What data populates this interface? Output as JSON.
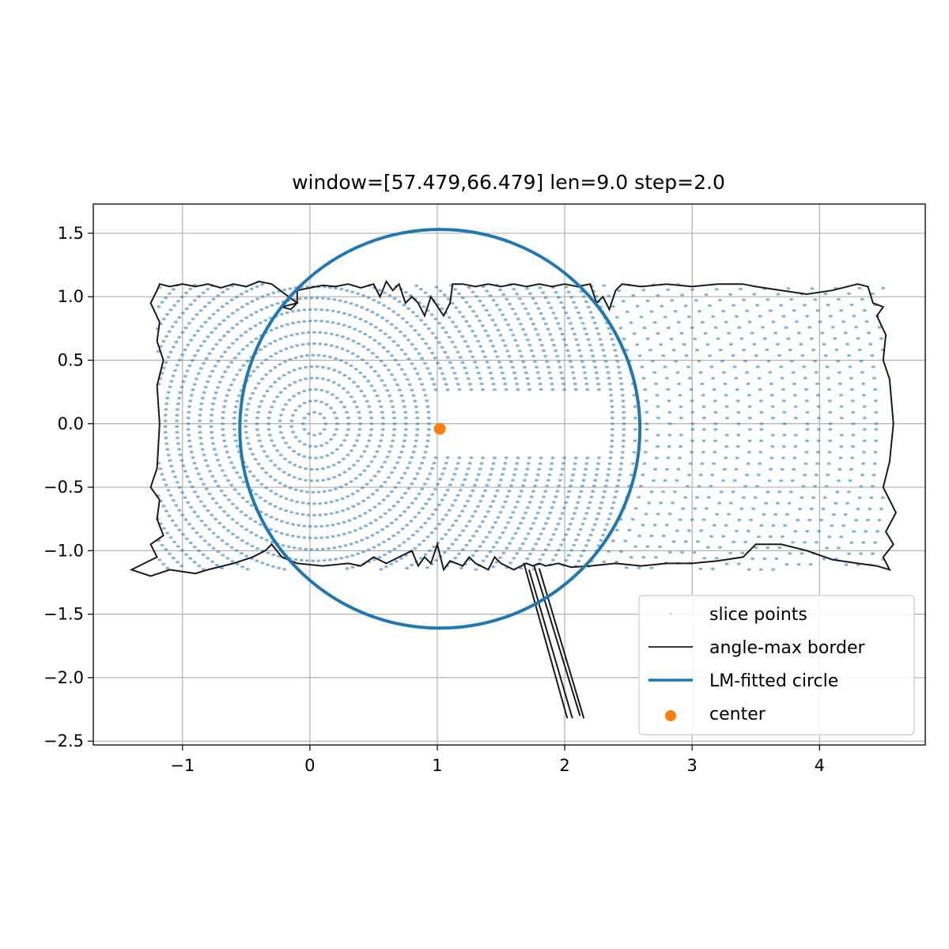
{
  "chart_data": {
    "type": "scatter",
    "title": "window=[57.479,66.479] len=9.0  step=2.0",
    "xlabel": "",
    "ylabel": "",
    "xlim": [
      -1.7,
      4.83
    ],
    "ylim": [
      -2.53,
      1.73
    ],
    "grid": true,
    "x_ticks": [
      -1,
      0,
      1,
      2,
      3,
      4
    ],
    "x_tick_labels": [
      "−1",
      "0",
      "1",
      "2",
      "3",
      "4"
    ],
    "y_ticks": [
      1.5,
      1.0,
      0.5,
      0.0,
      -0.5,
      -1.0,
      -1.5,
      -2.0,
      -2.5
    ],
    "y_tick_labels": [
      "1.5",
      "1.0",
      "0.5",
      "0.0",
      "−0.5",
      "−1.0",
      "−1.5",
      "−2.0",
      "−2.5"
    ],
    "legend_position": "lower-right",
    "colors": {
      "points": "#1f77b4",
      "border": "#1a1a1a",
      "circle": "#1f77b4",
      "center": "#ff7f0e"
    },
    "series": [
      {
        "name": "slice points",
        "kind": "scatter",
        "description_of_generation": "",
        "spiral_origin": [
          0.03,
          0.0
        ],
        "ring_spacing": 0.09,
        "x_range": [
          -1.2,
          4.5
        ],
        "y_range": [
          -1.15,
          1.1
        ]
      },
      {
        "name": "angle-max border",
        "kind": "line",
        "points": [
          [
            -1.2,
            1.05
          ],
          [
            -1.18,
            1.1
          ],
          [
            -1.1,
            1.08
          ],
          [
            -1.0,
            1.1
          ],
          [
            -0.9,
            1.08
          ],
          [
            -0.8,
            1.1
          ],
          [
            -0.7,
            1.07
          ],
          [
            -0.6,
            1.1
          ],
          [
            -0.5,
            1.08
          ],
          [
            -0.4,
            1.12
          ],
          [
            -0.3,
            1.1
          ],
          [
            -0.1,
            0.95
          ],
          [
            -0.22,
            0.92
          ],
          [
            -0.15,
            0.9
          ],
          [
            -0.1,
            0.95
          ],
          [
            -0.1,
            1.05
          ],
          [
            0.0,
            1.07
          ],
          [
            0.1,
            1.09
          ],
          [
            0.2,
            1.08
          ],
          [
            0.3,
            1.1
          ],
          [
            0.4,
            1.07
          ],
          [
            0.5,
            1.1
          ],
          [
            0.55,
            1.0
          ],
          [
            0.6,
            1.12
          ],
          [
            0.65,
            1.05
          ],
          [
            0.7,
            1.1
          ],
          [
            0.75,
            0.95
          ],
          [
            0.8,
            1.0
          ],
          [
            0.85,
            0.95
          ],
          [
            0.9,
            0.85
          ],
          [
            0.95,
            1.0
          ],
          [
            1.05,
            0.85
          ],
          [
            1.1,
            0.95
          ],
          [
            1.12,
            1.1
          ],
          [
            1.2,
            1.1
          ],
          [
            1.3,
            1.08
          ],
          [
            1.4,
            1.1
          ],
          [
            1.5,
            1.08
          ],
          [
            1.6,
            1.1
          ],
          [
            1.7,
            1.08
          ],
          [
            1.8,
            1.1
          ],
          [
            1.9,
            1.08
          ],
          [
            2.0,
            1.1
          ],
          [
            2.1,
            1.08
          ],
          [
            2.2,
            1.1
          ],
          [
            2.25,
            0.95
          ],
          [
            2.3,
            1.0
          ],
          [
            2.35,
            0.9
          ],
          [
            2.4,
            1.05
          ],
          [
            2.45,
            1.1
          ],
          [
            2.6,
            1.08
          ],
          [
            2.8,
            1.1
          ],
          [
            3.0,
            1.08
          ],
          [
            3.2,
            1.1
          ],
          [
            3.4,
            1.1
          ],
          [
            3.5,
            1.08
          ],
          [
            3.7,
            1.05
          ],
          [
            3.9,
            1.02
          ],
          [
            4.1,
            1.05
          ],
          [
            4.3,
            1.1
          ],
          [
            4.38,
            1.08
          ],
          [
            4.42,
            0.95
          ],
          [
            4.5,
            0.92
          ],
          [
            4.45,
            0.85
          ],
          [
            4.52,
            0.7
          ],
          [
            4.5,
            0.5
          ],
          [
            4.55,
            0.35
          ],
          [
            4.58,
            0.0
          ],
          [
            4.55,
            -0.3
          ],
          [
            4.5,
            -0.5
          ],
          [
            4.6,
            -0.7
          ],
          [
            4.52,
            -0.85
          ],
          [
            4.58,
            -0.95
          ],
          [
            4.5,
            -1.05
          ],
          [
            4.55,
            -1.15
          ],
          [
            4.45,
            -1.12
          ],
          [
            4.3,
            -1.1
          ],
          [
            4.1,
            -1.07
          ],
          [
            3.9,
            -1.0
          ],
          [
            3.7,
            -0.95
          ],
          [
            3.5,
            -0.95
          ],
          [
            3.4,
            -1.05
          ],
          [
            3.2,
            -1.08
          ],
          [
            3.0,
            -1.1
          ],
          [
            2.8,
            -1.1
          ],
          [
            2.6,
            -1.12
          ],
          [
            2.4,
            -1.1
          ],
          [
            2.2,
            -1.12
          ],
          [
            2.05,
            -1.13
          ],
          [
            1.95,
            -1.1
          ],
          [
            1.85,
            -1.12
          ],
          [
            1.8,
            -1.1
          ],
          [
            1.75,
            -1.12
          ],
          [
            1.7,
            -1.1
          ],
          [
            1.6,
            -1.15
          ],
          [
            1.5,
            -1.1
          ],
          [
            1.45,
            -1.05
          ],
          [
            1.4,
            -1.15
          ],
          [
            1.3,
            -1.1
          ],
          [
            1.25,
            -1.05
          ],
          [
            1.2,
            -1.12
          ],
          [
            1.1,
            -1.08
          ],
          [
            1.05,
            -1.15
          ],
          [
            1.0,
            -0.95
          ],
          [
            0.95,
            -1.1
          ],
          [
            0.9,
            -1.05
          ],
          [
            0.85,
            -1.12
          ],
          [
            0.8,
            -1.0
          ],
          [
            0.7,
            -1.05
          ],
          [
            0.6,
            -1.1
          ],
          [
            0.5,
            -1.05
          ],
          [
            0.4,
            -1.12
          ],
          [
            0.3,
            -1.1
          ],
          [
            0.1,
            -1.12
          ],
          [
            -0.1,
            -1.1
          ],
          [
            -0.22,
            -1.05
          ],
          [
            -0.3,
            -0.95
          ],
          [
            -0.35,
            -1.0
          ],
          [
            -0.45,
            -1.05
          ],
          [
            -0.6,
            -1.1
          ],
          [
            -0.8,
            -1.15
          ],
          [
            -0.9,
            -1.18
          ],
          [
            -1.1,
            -1.15
          ],
          [
            -1.25,
            -1.2
          ],
          [
            -1.4,
            -1.15
          ],
          [
            -1.3,
            -1.1
          ],
          [
            -1.2,
            -1.05
          ],
          [
            -1.25,
            -0.95
          ],
          [
            -1.15,
            -0.88
          ],
          [
            -1.2,
            -0.75
          ],
          [
            -1.18,
            -0.6
          ],
          [
            -1.25,
            -0.5
          ],
          [
            -1.2,
            -0.35
          ],
          [
            -1.18,
            0.0
          ],
          [
            -1.2,
            0.3
          ],
          [
            -1.15,
            0.5
          ],
          [
            -1.2,
            0.65
          ],
          [
            -1.18,
            0.8
          ],
          [
            -1.25,
            0.95
          ],
          [
            -1.2,
            1.05
          ]
        ],
        "branch_lines": [
          [
            [
              1.68,
              -1.1
            ],
            [
              2.02,
              -2.32
            ]
          ],
          [
            [
              1.72,
              -1.15
            ],
            [
              2.06,
              -2.32
            ]
          ],
          [
            [
              1.76,
              -1.12
            ],
            [
              2.12,
              -2.3
            ]
          ],
          [
            [
              1.8,
              -1.14
            ],
            [
              2.15,
              -2.32
            ]
          ]
        ]
      },
      {
        "name": "LM-fitted circle",
        "kind": "circle",
        "cx": 1.02,
        "cy": -0.04,
        "r": 1.57
      },
      {
        "name": "center",
        "kind": "scatter",
        "x": [
          1.02
        ],
        "y": [
          -0.04
        ]
      }
    ]
  }
}
